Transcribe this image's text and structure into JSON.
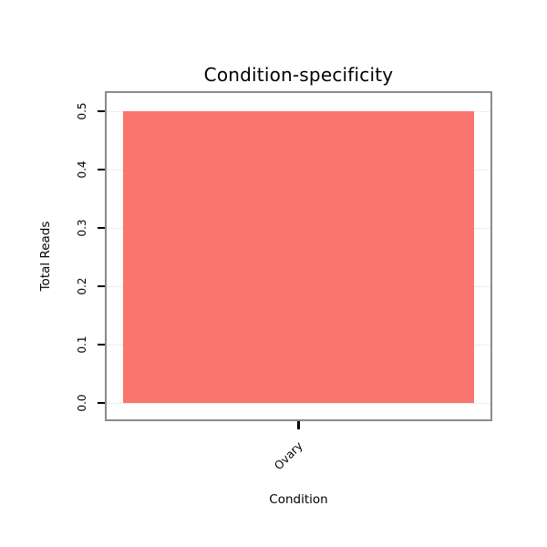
{
  "chart_data": {
    "type": "bar",
    "title": "Condition-specificity",
    "xlabel": "Condition",
    "ylabel": "Total Reads",
    "categories": [
      "Ovary"
    ],
    "values": [
      0.5
    ],
    "ylim": [
      0,
      0.5
    ],
    "yticks": [
      0,
      0.1,
      0.2,
      0.3,
      0.4,
      0.5
    ],
    "ytick_labels": [
      "0.0",
      "0.1",
      "0.2",
      "0.3",
      "0.4",
      "0.5"
    ],
    "bar_color": "#F8766D",
    "gridline_color": "#ededed",
    "panel_border_color": "#8a8a8a",
    "grid": true,
    "legend": "none"
  }
}
